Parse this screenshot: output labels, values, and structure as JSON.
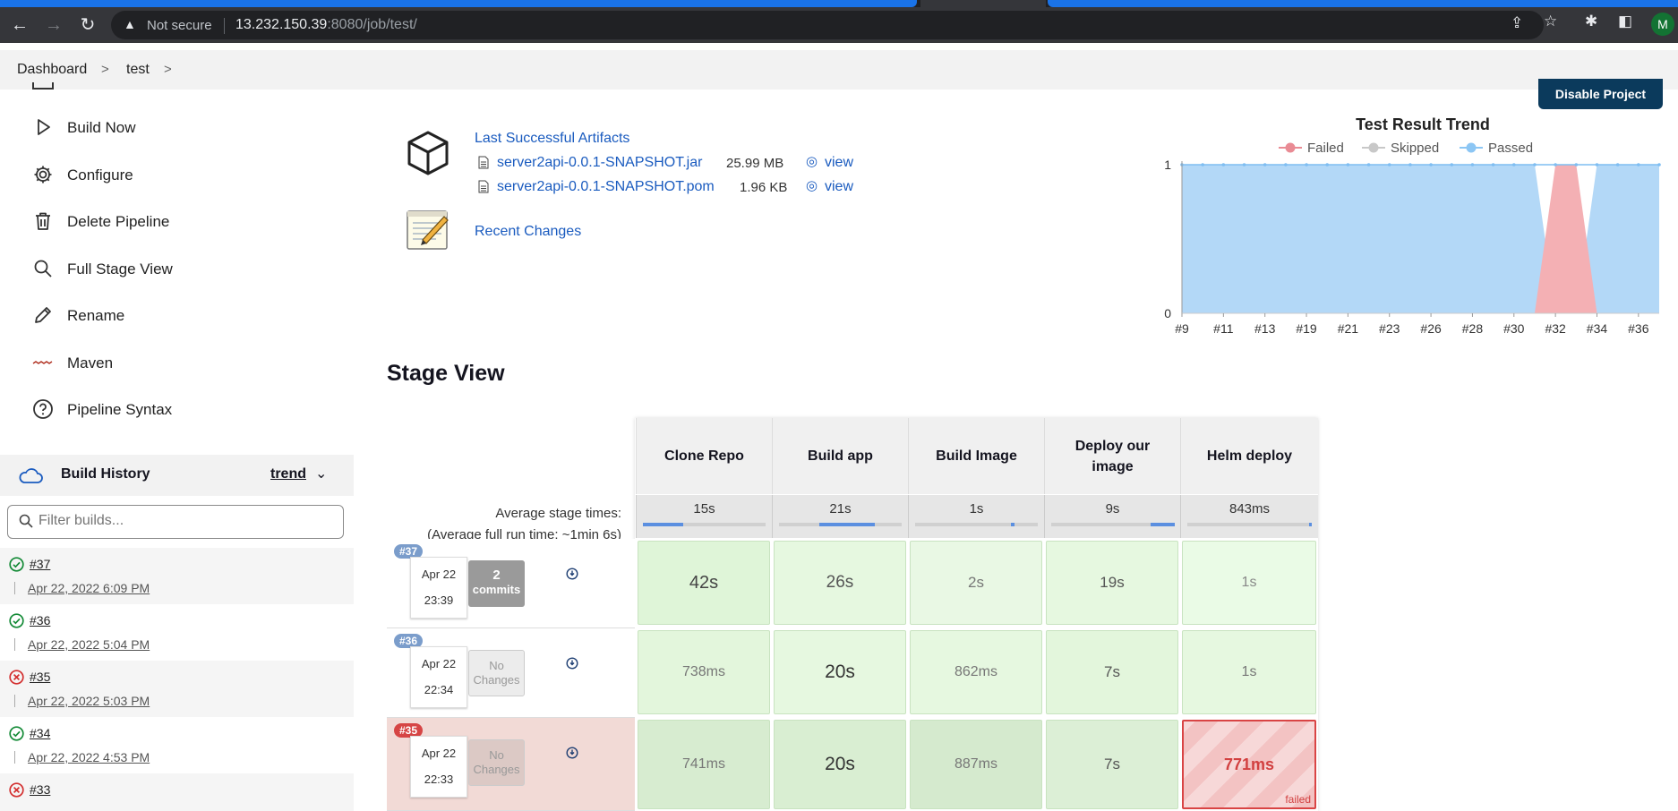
{
  "browser": {
    "security_label": "Not secure",
    "url_host": "13.232.150.39",
    "url_rest": ":8080/job/test/",
    "profile_initial": "M"
  },
  "breadcrumb": {
    "items": [
      "Dashboard",
      "test"
    ]
  },
  "sidebar": {
    "items": [
      {
        "label": "Build Now",
        "icon": "play-icon"
      },
      {
        "label": "Configure",
        "icon": "gear-icon"
      },
      {
        "label": "Delete Pipeline",
        "icon": "trash-icon"
      },
      {
        "label": "Full Stage View",
        "icon": "search-icon"
      },
      {
        "label": "Rename",
        "icon": "pencil-icon"
      },
      {
        "label": "Maven",
        "icon": "maven-logo-icon"
      },
      {
        "label": "Pipeline Syntax",
        "icon": "help-icon"
      }
    ],
    "build_history": {
      "title": "Build History",
      "trend_label": "trend",
      "filter_placeholder": "Filter builds...",
      "builds": [
        {
          "number": "#37",
          "date": "Apr 22, 2022 6:09 PM",
          "status": "success"
        },
        {
          "number": "#36",
          "date": "Apr 22, 2022 5:04 PM",
          "status": "success"
        },
        {
          "number": "#35",
          "date": "Apr 22, 2022 5:03 PM",
          "status": "failed"
        },
        {
          "number": "#34",
          "date": "Apr 22, 2022 4:53 PM",
          "status": "success"
        },
        {
          "number": "#33",
          "date": "",
          "status": "failed"
        }
      ]
    }
  },
  "artifacts": {
    "title": "Last Successful Artifacts",
    "files": [
      {
        "name": "server2api-0.0.1-SNAPSHOT.jar",
        "size": "25.99 MB",
        "action": "view"
      },
      {
        "name": "server2api-0.0.1-SNAPSHOT.pom",
        "size": "1.96 KB",
        "action": "view"
      }
    ],
    "recent_changes": "Recent Changes"
  },
  "project": {
    "disable_label": "Disable Project"
  },
  "chart_data": {
    "type": "area",
    "title": "Test Result Trend",
    "legend": [
      "Failed",
      "Skipped",
      "Passed"
    ],
    "legend_position": "top",
    "colors": {
      "Failed": "#f4b0b4",
      "Skipped": "#d9d9d9",
      "Passed": "#b3d8f7"
    },
    "x": [
      "#9",
      "#10",
      "#11",
      "#12",
      "#13",
      "#14",
      "#19",
      "#20",
      "#21",
      "#22",
      "#23",
      "#24",
      "#26",
      "#27",
      "#28",
      "#29",
      "#30",
      "#31",
      "#32",
      "#33",
      "#34",
      "#35",
      "#36",
      "#37"
    ],
    "x_tick_labels": [
      "#9",
      "#11",
      "#13",
      "#19",
      "#21",
      "#23",
      "#26",
      "#28",
      "#30",
      "#32",
      "#34",
      "#36"
    ],
    "series": [
      {
        "name": "Failed",
        "values": [
          0,
          0,
          0,
          0,
          0,
          0,
          0,
          0,
          0,
          0,
          0,
          0,
          0,
          0,
          0,
          0,
          0,
          0,
          1,
          1,
          0,
          0,
          0,
          0
        ]
      },
      {
        "name": "Skipped",
        "values": [
          0,
          0,
          0,
          0,
          0,
          0,
          0,
          0,
          0,
          0,
          0,
          0,
          0,
          0,
          0,
          0,
          0,
          0,
          0,
          0,
          0,
          0,
          0,
          0
        ]
      },
      {
        "name": "Passed",
        "values": [
          1,
          1,
          1,
          1,
          1,
          1,
          1,
          1,
          1,
          1,
          1,
          1,
          1,
          1,
          1,
          1,
          1,
          1,
          0,
          0,
          1,
          1,
          1,
          1
        ]
      }
    ],
    "ylim": [
      0,
      1
    ],
    "y_ticks": [
      "0",
      "1"
    ]
  },
  "stage_view": {
    "title": "Stage View",
    "avg_label": "Average stage times:",
    "avg_full_prefix": "(Average ",
    "avg_full_word": "full",
    "avg_full_suffix": " run time: ~1min 6s)",
    "stages": [
      {
        "name": "Clone Repo",
        "avg": "15s",
        "fill": 0.33
      },
      {
        "name": "Build app",
        "avg": "21s",
        "fill": 0.45
      },
      {
        "name": "Build Image",
        "avg": "1s",
        "fill": 0.03
      },
      {
        "name": "Deploy our image",
        "avg": "9s",
        "fill": 0.2
      },
      {
        "name": "Helm deploy",
        "avg": "843ms",
        "fill": 0.02
      }
    ],
    "runs": [
      {
        "badge": "#37",
        "date": "Apr 22",
        "time": "23:39",
        "changes_line1": "2",
        "changes_line2": "commits",
        "cells": [
          "42s",
          "26s",
          "2s",
          "19s",
          "1s"
        ],
        "failed_label": ""
      },
      {
        "badge": "#36",
        "date": "Apr 22",
        "time": "22:34",
        "changes_line1": "No",
        "changes_line2": "Changes",
        "cells": [
          "738ms",
          "20s",
          "862ms",
          "7s",
          "1s"
        ],
        "failed_label": ""
      },
      {
        "badge": "#35",
        "date": "Apr 22",
        "time": "22:33",
        "changes_line1": "No",
        "changes_line2": "Changes",
        "cells": [
          "741ms",
          "20s",
          "887ms",
          "7s",
          "771ms"
        ],
        "failed_label": "failed"
      }
    ]
  }
}
